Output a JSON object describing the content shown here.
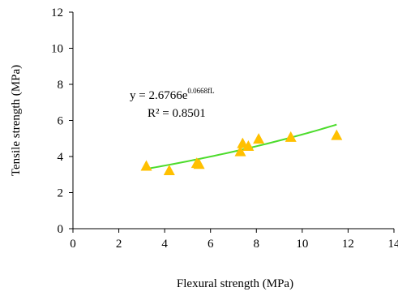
{
  "chart_data": {
    "type": "scatter",
    "xlabel": "Flexural strength (MPa)",
    "ylabel": "Tensile strength (MPa)",
    "xlim": [
      0,
      14
    ],
    "ylim": [
      0,
      12
    ],
    "xticks": [
      "0",
      "2",
      "4",
      "6",
      "8",
      "10",
      "12",
      "14"
    ],
    "yticks": [
      "0",
      "2",
      "4",
      "6",
      "8",
      "10",
      "12"
    ],
    "grid": false,
    "legend": "none",
    "series": [
      {
        "marker": "triangle",
        "color": "#FFC000",
        "points": [
          {
            "x": 3.2,
            "y": 3.45
          },
          {
            "x": 4.2,
            "y": 3.2
          },
          {
            "x": 5.4,
            "y": 3.6
          },
          {
            "x": 5.5,
            "y": 3.55
          },
          {
            "x": 7.3,
            "y": 4.25
          },
          {
            "x": 7.4,
            "y": 4.7
          },
          {
            "x": 7.65,
            "y": 4.55
          },
          {
            "x": 8.1,
            "y": 4.95
          },
          {
            "x": 9.5,
            "y": 5.05
          },
          {
            "x": 11.5,
            "y": 5.15
          }
        ]
      }
    ],
    "trendline": {
      "type": "exponential",
      "color": "#4CDC2C",
      "a": 2.6766,
      "b": 0.0668,
      "x_range": [
        3.2,
        11.5
      ],
      "equation": {
        "prefix": "y = 2.6766e",
        "exponent": "0.0668fL"
      },
      "r_squared_text": "R² = 0.8501"
    }
  }
}
